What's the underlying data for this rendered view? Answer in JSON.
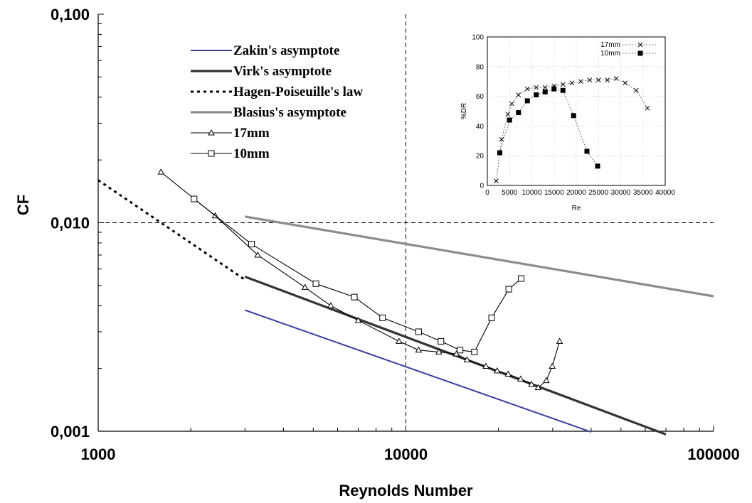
{
  "chart_data": [
    {
      "type": "line",
      "xscale": "log",
      "yscale": "log",
      "xlim": [
        1000,
        100000
      ],
      "ylim": [
        0.001,
        0.1
      ],
      "xlabel": "Reynolds Number",
      "ylabel": "CF",
      "xticks": [
        "1000",
        "10000",
        "100000"
      ],
      "yticks": [
        "0,001",
        "0,010",
        "0,100"
      ],
      "reference_lines": {
        "x": 10000,
        "y": 0.01,
        "style": "dashed"
      },
      "legend_position": "top-center",
      "series": [
        {
          "name": "Zakin's asymptote",
          "color": "#3b3fa0",
          "style": "solid",
          "x": [
            3000,
            40000
          ],
          "y": [
            0.00381,
            0.000992
          ]
        },
        {
          "name": "Virk's asymptote",
          "color": "#333333",
          "style": "solid-thick",
          "x": [
            3000,
            70000
          ],
          "y": [
            0.00551,
            0.000966
          ]
        },
        {
          "name": "Hagen-Poiseuille's law",
          "color": "#000000",
          "style": "dotted",
          "x": [
            1000,
            3000
          ],
          "y": [
            0.016,
            0.00533
          ]
        },
        {
          "name": "Blasius's asymptote",
          "color": "#8c8c8c",
          "style": "solid-thick",
          "x": [
            3000,
            100000
          ],
          "y": [
            0.0107,
            0.00444
          ]
        },
        {
          "name": "17mm",
          "color": "#000000",
          "marker": "triangle-open",
          "x": [
            1600,
            2400,
            3300,
            4700,
            5700,
            7000,
            9500,
            11000,
            12800,
            14600,
            15800,
            18200,
            19800,
            21500,
            23600,
            25600,
            26900,
            28600,
            29900,
            31600
          ],
          "y": [
            0.0175,
            0.0108,
            0.007,
            0.0049,
            0.004,
            0.0034,
            0.0027,
            0.00245,
            0.0024,
            0.00235,
            0.0022,
            0.00205,
            0.00195,
            0.00188,
            0.00178,
            0.00168,
            0.00162,
            0.00175,
            0.00205,
            0.0027
          ]
        },
        {
          "name": "10mm",
          "color": "#000000",
          "marker": "square-open",
          "x": [
            2050,
            3150,
            5100,
            6800,
            8400,
            11000,
            13000,
            15000,
            16700,
            19000,
            21600,
            23700
          ],
          "y": [
            0.013,
            0.0079,
            0.0051,
            0.0044,
            0.0035,
            0.003,
            0.0027,
            0.00245,
            0.0024,
            0.0035,
            0.0048,
            0.0054
          ]
        }
      ]
    },
    {
      "type": "line",
      "inset": true,
      "xlabel": "Re",
      "ylabel": "%DR",
      "xlim": [
        0,
        40000
      ],
      "ylim": [
        0,
        100
      ],
      "xticks": [
        "0",
        "5000",
        "10000",
        "15000",
        "20000",
        "25000",
        "30000",
        "35000",
        "40000"
      ],
      "yticks": [
        "0",
        "20",
        "40",
        "60",
        "80",
        "100"
      ],
      "grid": true,
      "legend_position": "top-right",
      "series": [
        {
          "name": "17mm",
          "marker": "x",
          "x": [
            2000,
            3200,
            4600,
            5500,
            7000,
            9000,
            11000,
            13000,
            15000,
            17000,
            19000,
            21000,
            23000,
            25000,
            27000,
            29000,
            31000,
            33500,
            36000
          ],
          "y": [
            3,
            31,
            48,
            55,
            61,
            65,
            66,
            66,
            67,
            68,
            69,
            70,
            71,
            71,
            71,
            72,
            69,
            64,
            52
          ]
        },
        {
          "name": "10mm",
          "marker": "square-filled",
          "x": [
            2800,
            5000,
            7000,
            9000,
            11000,
            13000,
            15000,
            17000,
            19400,
            22400,
            24800
          ],
          "y": [
            22,
            44,
            49,
            57,
            61,
            63,
            65,
            64,
            47,
            23,
            13
          ]
        }
      ]
    }
  ]
}
